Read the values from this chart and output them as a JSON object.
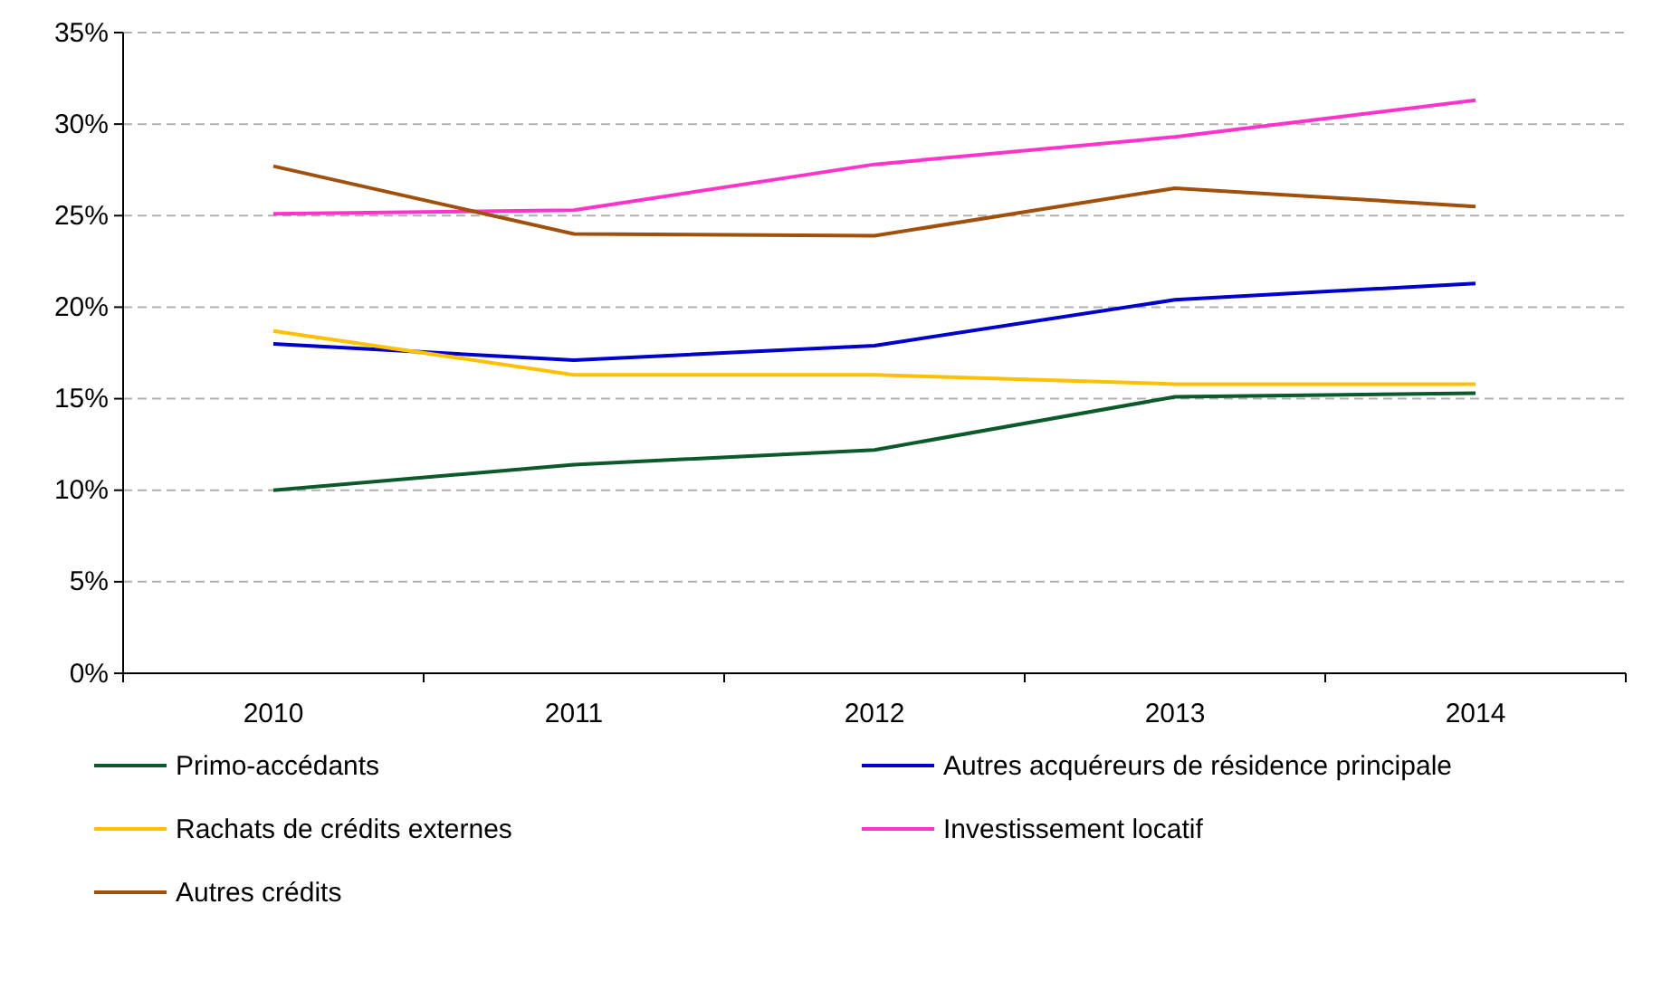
{
  "chart_data": {
    "type": "line",
    "categories": [
      "2010",
      "2011",
      "2012",
      "2013",
      "2014"
    ],
    "series": [
      {
        "name": "Primo-accédants",
        "color": "#0b5a2a",
        "values": [
          10.0,
          11.4,
          12.2,
          15.1,
          15.3
        ]
      },
      {
        "name": "Autres acquéreurs de résidence principale",
        "color": "#0000cc",
        "values": [
          18.0,
          17.1,
          17.9,
          20.4,
          21.3
        ]
      },
      {
        "name": "Rachats de crédits externes",
        "color": "#ffc000",
        "values": [
          18.7,
          16.3,
          16.3,
          15.8,
          15.8
        ]
      },
      {
        "name": "Investissement locatif",
        "color": "#ff33cc",
        "values": [
          25.1,
          25.3,
          27.8,
          29.3,
          31.3
        ]
      },
      {
        "name": "Autres crédits",
        "color": "#a0500a",
        "values": [
          27.7,
          24.0,
          23.9,
          26.5,
          25.5
        ]
      }
    ],
    "ylim": [
      0,
      35
    ],
    "yticks": [
      {
        "value": 0,
        "label": "0%"
      },
      {
        "value": 5,
        "label": "5%"
      },
      {
        "value": 10,
        "label": "10%"
      },
      {
        "value": 15,
        "label": "15%"
      },
      {
        "value": 20,
        "label": "20%"
      },
      {
        "value": 25,
        "label": "25%"
      },
      {
        "value": 30,
        "label": "30%"
      },
      {
        "value": 35,
        "label": "35%"
      }
    ],
    "grid": "y",
    "legend": "bottom"
  }
}
